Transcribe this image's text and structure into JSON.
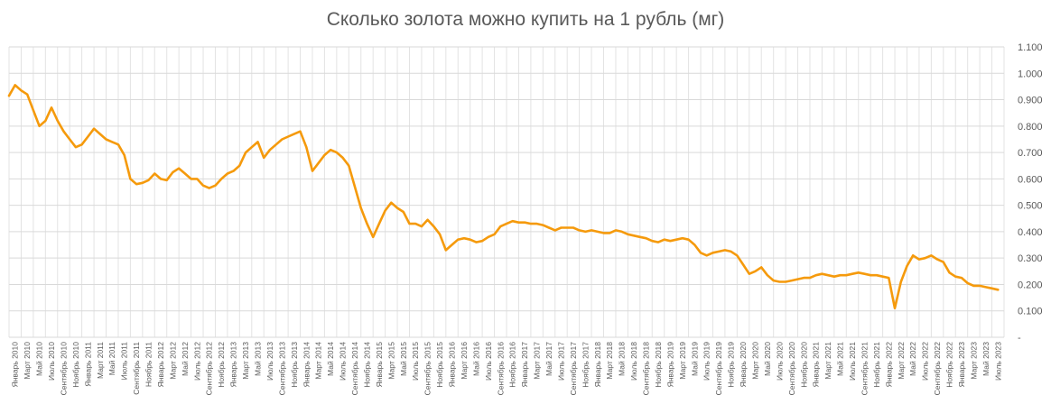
{
  "chart_data": {
    "type": "line",
    "title": "Сколько золота можно купить на 1 рубль (мг)",
    "ylim": [
      0,
      1.1
    ],
    "yticks": [
      "-",
      "0.100",
      "0.200",
      "0.300",
      "0.400",
      "0.500",
      "0.600",
      "0.700",
      "0.800",
      "0.900",
      "1.000",
      "1.100"
    ],
    "grid": true,
    "legend": "none",
    "colors": {
      "series": "#f59a0c",
      "grid": "#d9d9d9",
      "text": "#595959"
    },
    "x_categories": [
      "Январь 2010",
      "Март 2010",
      "Май 2010",
      "Июль 2010",
      "Сентябрь 2010",
      "Ноябрь 2010",
      "Январь 2011",
      "Март 2011",
      "Май 2011",
      "Июль 2011",
      "Сентябрь 2011",
      "Ноябрь 2011",
      "Январь 2012",
      "Март 2012",
      "Май 2012",
      "Июль 2012",
      "Сентябрь 2012",
      "Ноябрь 2012",
      "Январь 2013",
      "Март 2013",
      "Май 2013",
      "Июль 2013",
      "Сентябрь 2013",
      "Ноябрь 2013",
      "Январь 2014",
      "Март 2014",
      "Май 2014",
      "Июль 2014",
      "Сентябрь 2014",
      "Ноябрь 2014",
      "Январь 2015",
      "Март 2015",
      "Май 2015",
      "Июль 2015",
      "Сентябрь 2015",
      "Ноябрь 2015",
      "Январь 2016",
      "Март 2016",
      "Май 2016",
      "Июль 2016",
      "Сентябрь 2016",
      "Ноябрь 2016",
      "Январь 2017",
      "Март 2017",
      "Май 2017",
      "Июль 2017",
      "Сентябрь 2017",
      "Ноябрь 2017",
      "Январь 2018",
      "Март 2018",
      "Май 2018",
      "Июль 2018",
      "Сентябрь 2018",
      "Ноябрь 2018",
      "Январь 2019",
      "Март 2019",
      "Май 2019",
      "Июль 2019",
      "Сентябрь 2019",
      "Ноябрь 2019",
      "Январь 2020",
      "Март 2020",
      "Май 2020",
      "Июль 2020",
      "Сентябрь 2020",
      "Ноябрь 2020",
      "Январь 2021",
      "Март 2021",
      "Май 2021",
      "Июль 2021",
      "Сентябрь 2021",
      "Ноябрь 2021",
      "Январь 2022",
      "Март 2022",
      "Май 2022",
      "Июль 2022",
      "Сентябрь 2022",
      "Ноябрь 2022",
      "Январь 2023",
      "Март 2023",
      "Май 2023",
      "Июль 2023"
    ],
    "series": [
      {
        "x": [
          "2010-01",
          "2010-02",
          "2010-03",
          "2010-04",
          "2010-05",
          "2010-06",
          "2010-07",
          "2010-08",
          "2010-09",
          "2010-10",
          "2010-11",
          "2010-12",
          "2011-01",
          "2011-02",
          "2011-03",
          "2011-04",
          "2011-05",
          "2011-06",
          "2011-07",
          "2011-08",
          "2011-09",
          "2011-10",
          "2011-11",
          "2011-12",
          "2012-01",
          "2012-02",
          "2012-03",
          "2012-04",
          "2012-05",
          "2012-06",
          "2012-07",
          "2012-08",
          "2012-09",
          "2012-10",
          "2012-11",
          "2012-12",
          "2013-01",
          "2013-02",
          "2013-03",
          "2013-04",
          "2013-05",
          "2013-06",
          "2013-07",
          "2013-08",
          "2013-09",
          "2013-10",
          "2013-11",
          "2013-12",
          "2014-01",
          "2014-02",
          "2014-03",
          "2014-04",
          "2014-05",
          "2014-06",
          "2014-07",
          "2014-08",
          "2014-09",
          "2014-10",
          "2014-11",
          "2014-12",
          "2015-01",
          "2015-02",
          "2015-03",
          "2015-04",
          "2015-05",
          "2015-06",
          "2015-07",
          "2015-08",
          "2015-09",
          "2015-10",
          "2015-11",
          "2015-12",
          "2016-01",
          "2016-02",
          "2016-03",
          "2016-04",
          "2016-05",
          "2016-06",
          "2016-07",
          "2016-08",
          "2016-09",
          "2016-10",
          "2016-11",
          "2016-12",
          "2017-01",
          "2017-02",
          "2017-03",
          "2017-04",
          "2017-05",
          "2017-06",
          "2017-07",
          "2017-08",
          "2017-09",
          "2017-10",
          "2017-11",
          "2017-12",
          "2018-01",
          "2018-02",
          "2018-03",
          "2018-04",
          "2018-05",
          "2018-06",
          "2018-07",
          "2018-08",
          "2018-09",
          "2018-10",
          "2018-11",
          "2018-12",
          "2019-01",
          "2019-02",
          "2019-03",
          "2019-04",
          "2019-05",
          "2019-06",
          "2019-07",
          "2019-08",
          "2019-09",
          "2019-10",
          "2019-11",
          "2019-12",
          "2020-01",
          "2020-02",
          "2020-03",
          "2020-04",
          "2020-05",
          "2020-06",
          "2020-07",
          "2020-08",
          "2020-09",
          "2020-10",
          "2020-11",
          "2020-12",
          "2021-01",
          "2021-02",
          "2021-03",
          "2021-04",
          "2021-05",
          "2021-06",
          "2021-07",
          "2021-08",
          "2021-09",
          "2021-10",
          "2021-11",
          "2021-12",
          "2022-01",
          "2022-02",
          "2022-03",
          "2022-04",
          "2022-05",
          "2022-06",
          "2022-07",
          "2022-08",
          "2022-09",
          "2022-10",
          "2022-11",
          "2022-12",
          "2023-01",
          "2023-02",
          "2023-03",
          "2023-04",
          "2023-05",
          "2023-06",
          "2023-07",
          "2023-08"
        ],
        "values": [
          0.915,
          0.955,
          0.935,
          0.92,
          0.86,
          0.8,
          0.82,
          0.87,
          0.82,
          0.78,
          0.75,
          0.72,
          0.73,
          0.76,
          0.79,
          0.77,
          0.75,
          0.74,
          0.73,
          0.69,
          0.6,
          0.58,
          0.585,
          0.595,
          0.62,
          0.6,
          0.595,
          0.625,
          0.64,
          0.62,
          0.6,
          0.6,
          0.575,
          0.565,
          0.575,
          0.6,
          0.62,
          0.63,
          0.65,
          0.7,
          0.72,
          0.74,
          0.68,
          0.71,
          0.73,
          0.75,
          0.76,
          0.77,
          0.78,
          0.72,
          0.63,
          0.66,
          0.69,
          0.71,
          0.7,
          0.68,
          0.65,
          0.57,
          0.49,
          0.43,
          0.38,
          0.43,
          0.48,
          0.51,
          0.49,
          0.475,
          0.43,
          0.43,
          0.42,
          0.445,
          0.42,
          0.39,
          0.33,
          0.35,
          0.37,
          0.375,
          0.37,
          0.36,
          0.365,
          0.38,
          0.39,
          0.42,
          0.43,
          0.44,
          0.435,
          0.435,
          0.43,
          0.43,
          0.425,
          0.415,
          0.405,
          0.415,
          0.415,
          0.415,
          0.405,
          0.4,
          0.405,
          0.4,
          0.395,
          0.395,
          0.405,
          0.4,
          0.39,
          0.385,
          0.38,
          0.375,
          0.365,
          0.36,
          0.37,
          0.365,
          0.37,
          0.375,
          0.37,
          0.35,
          0.32,
          0.31,
          0.32,
          0.325,
          0.33,
          0.325,
          0.31,
          0.275,
          0.24,
          0.25,
          0.265,
          0.235,
          0.215,
          0.21,
          0.21,
          0.215,
          0.22,
          0.225,
          0.225,
          0.235,
          0.24,
          0.235,
          0.23,
          0.235,
          0.235,
          0.24,
          0.245,
          0.24,
          0.235,
          0.235,
          0.23,
          0.225,
          0.11,
          0.21,
          0.27,
          0.31,
          0.295,
          0.3,
          0.31,
          0.295,
          0.285,
          0.245,
          0.23,
          0.225,
          0.205,
          0.195,
          0.195,
          0.19,
          0.185,
          0.18
        ]
      }
    ]
  }
}
